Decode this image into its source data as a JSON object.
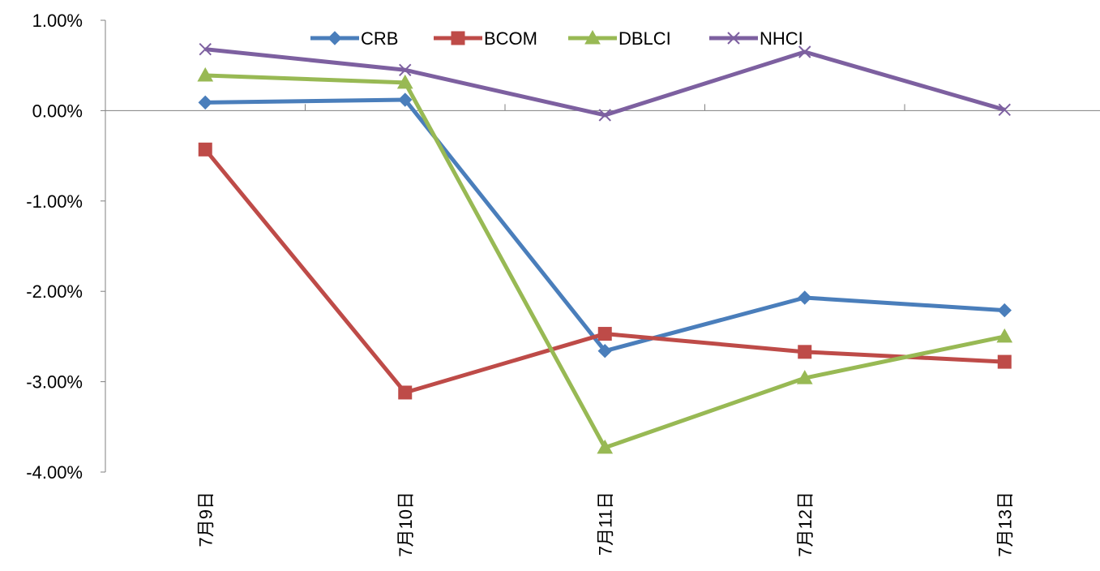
{
  "chart_data": {
    "type": "line",
    "title": "",
    "xlabel": "",
    "ylabel": "",
    "categories": [
      "7月9日",
      "7月10日",
      "7月11日",
      "7月12日",
      "7月13日"
    ],
    "ylim": [
      -4.0,
      1.0
    ],
    "yticks": [
      1.0,
      0.0,
      -1.0,
      -2.0,
      -3.0,
      -4.0
    ],
    "ytick_labels": [
      "1.00%",
      "0.00%",
      "-1.00%",
      "-2.00%",
      "-3.00%",
      "-4.00%"
    ],
    "grid": false,
    "legend_position": "top",
    "series": [
      {
        "name": "CRB",
        "color": "#4a7ebb",
        "marker": "diamond",
        "values": [
          0.09,
          0.12,
          -2.66,
          -2.07,
          -2.21
        ]
      },
      {
        "name": "BCOM",
        "color": "#be4b48",
        "marker": "square",
        "values": [
          -0.43,
          -3.12,
          -2.47,
          -2.67,
          -2.78
        ]
      },
      {
        "name": "DBLCI",
        "color": "#98b954",
        "marker": "triangle",
        "values": [
          0.39,
          0.31,
          -3.73,
          -2.96,
          -2.5
        ]
      },
      {
        "name": "NHCI",
        "color": "#7d60a0",
        "marker": "x",
        "values": [
          0.68,
          0.45,
          -0.05,
          0.65,
          0.01
        ]
      }
    ]
  }
}
